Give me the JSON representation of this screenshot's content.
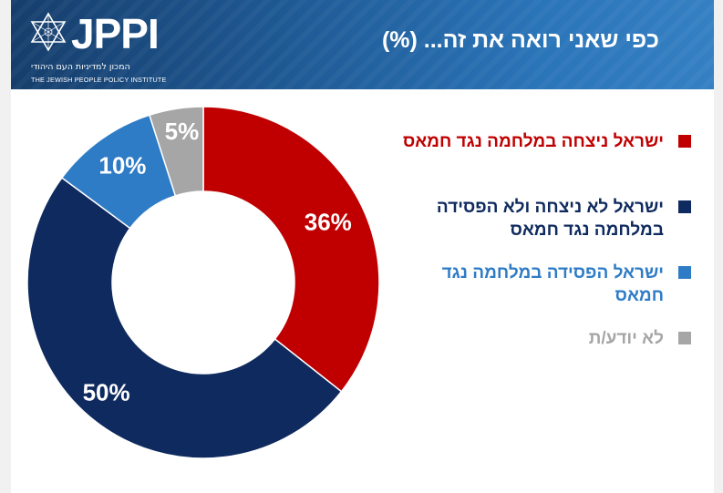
{
  "header": {
    "logo_text": "JPPI",
    "logo_sub_he": "המכון למדיניות העם היהודי",
    "logo_sub_en": "THE JEWISH PEOPLE POLICY INSTITUTE",
    "title": "כפי שאני רואה את זה... (%)"
  },
  "colors": {
    "win": "#c00000",
    "neither": "#0f2a5e",
    "lose": "#2f7cc6",
    "dont_know": "#a6a6a6"
  },
  "icons": {
    "logo": "star-of-david-icon"
  },
  "chart_data": {
    "type": "pie",
    "variant": "donut",
    "title": "כפי שאני רואה את זה... (%)",
    "legend_position": "right",
    "unit": "%",
    "slices": [
      {
        "label": "ישראל ניצחה  במלחמה נגד חמאס",
        "value": 36,
        "display": "36%",
        "color": "#c00000"
      },
      {
        "label": "ישראל לא ניצחה ולא הפסידה במלחמה נגד חמאס",
        "value": 50,
        "display": "50%",
        "color": "#0f2a5e"
      },
      {
        "label": "ישראל הפסידה במלחמה נגד חמאס",
        "value": 10,
        "display": "10%",
        "color": "#2f7cc6"
      },
      {
        "label": "לא יודע/ת",
        "value": 5,
        "display": "5%",
        "color": "#a6a6a6"
      }
    ]
  }
}
